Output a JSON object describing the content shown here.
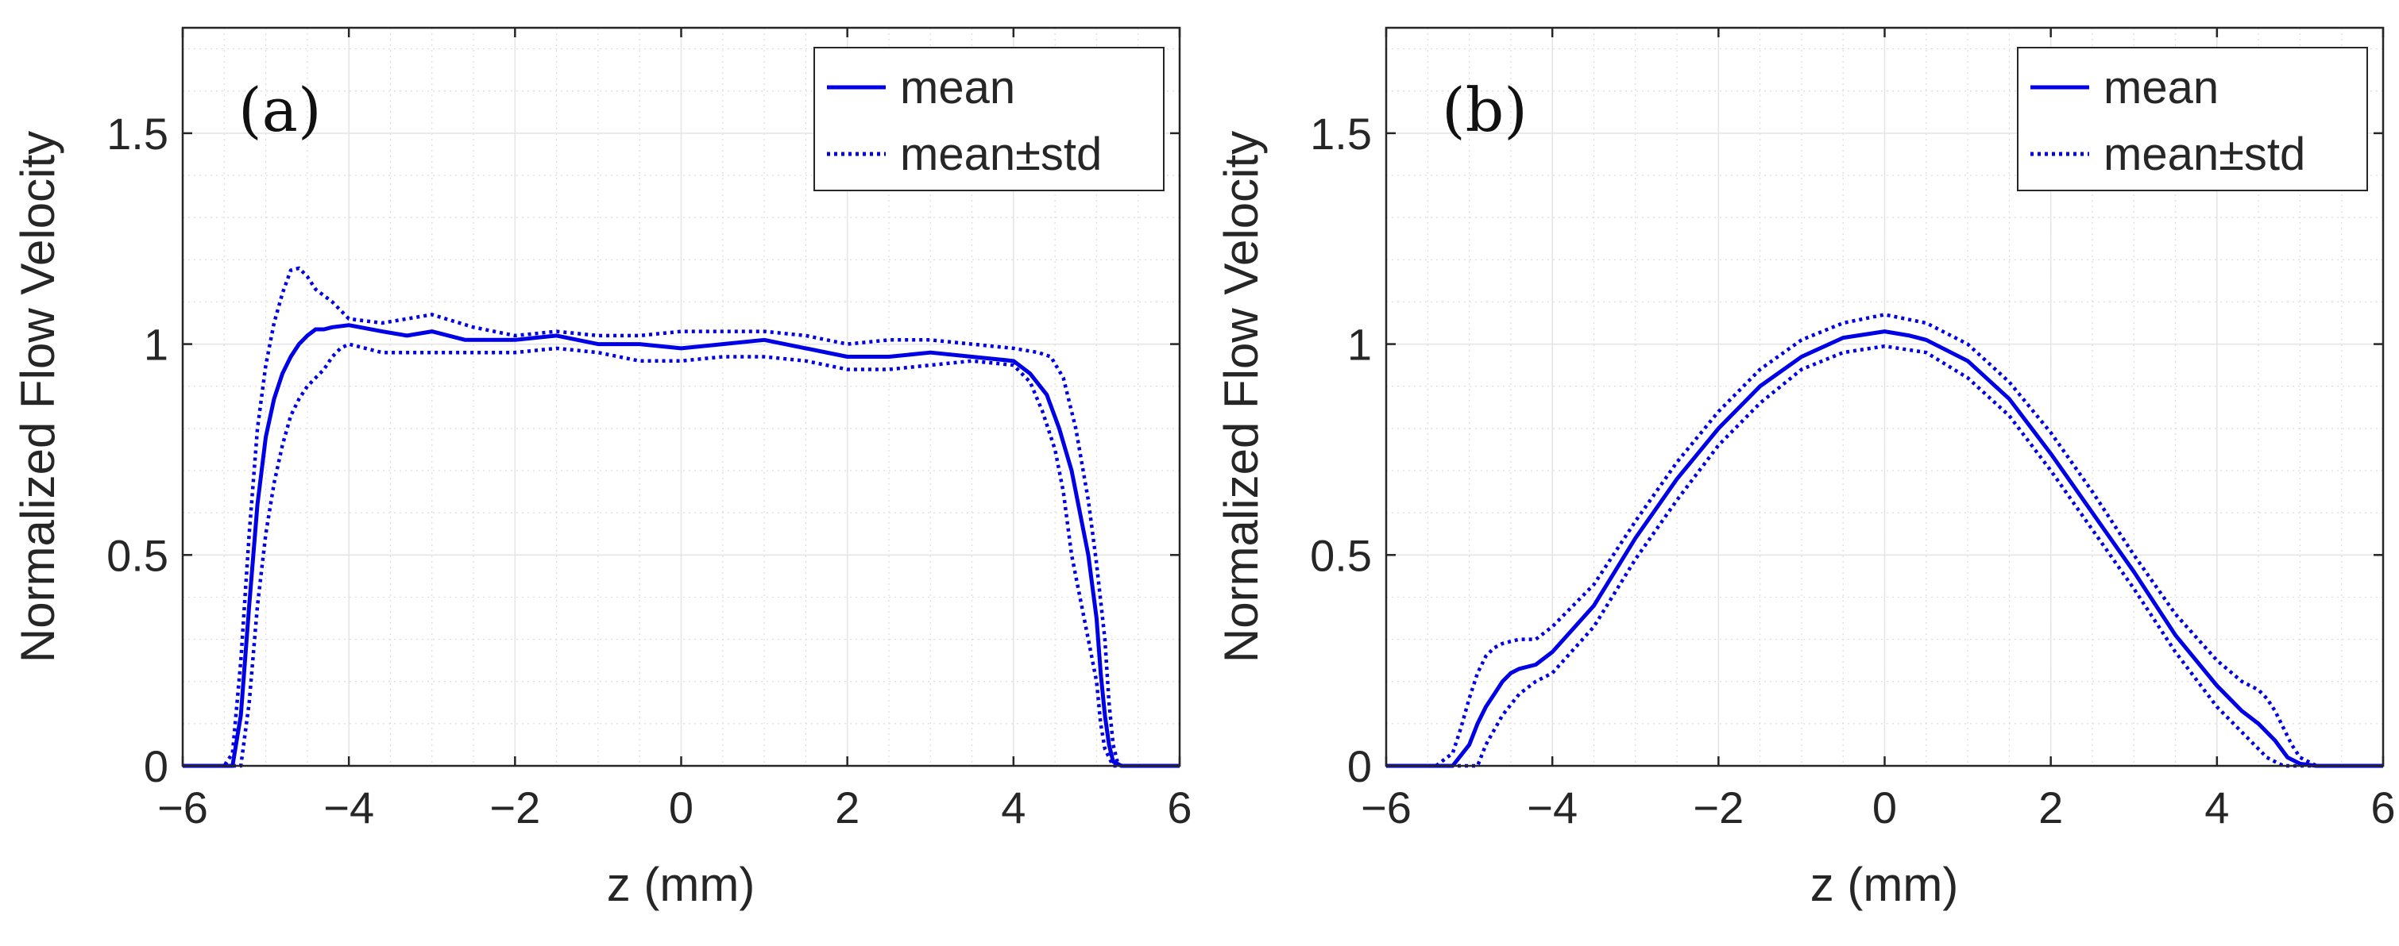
{
  "chart_data": [
    {
      "type": "line",
      "panel_label": "(a)",
      "xlabel": "z (mm)",
      "ylabel": "Normalized Flow Velocity",
      "xlim": [
        -6,
        6
      ],
      "ylim": [
        0,
        1.75
      ],
      "xticks": [
        -6,
        -4,
        -2,
        0,
        2,
        4,
        6
      ],
      "xtick_labels": [
        "−6",
        "−4",
        "−2",
        "0",
        "2",
        "4",
        "6"
      ],
      "yticks": [
        0,
        0.5,
        1,
        1.5
      ],
      "ytick_labels": [
        "0",
        "0.5",
        "1",
        "1.5"
      ],
      "grid": true,
      "minor_grid": true,
      "legend_position": "top-right",
      "series": [
        {
          "name": "mean",
          "style": "solid",
          "color": "#0000e6",
          "x": [
            -6,
            -5.4,
            -5.3,
            -5.2,
            -5.1,
            -5.0,
            -4.9,
            -4.8,
            -4.7,
            -4.6,
            -4.5,
            -4.4,
            -4.3,
            -4.2,
            -4.0,
            -3.6,
            -3.3,
            -3.0,
            -2.6,
            -2.0,
            -1.5,
            -1.0,
            -0.5,
            0.0,
            0.5,
            1.0,
            1.5,
            2.0,
            2.5,
            3.0,
            3.5,
            4.0,
            4.2,
            4.4,
            4.55,
            4.7,
            4.8,
            4.9,
            5.0,
            5.05,
            5.1,
            5.15,
            5.2,
            5.3,
            6
          ],
          "y": [
            0,
            0,
            0.12,
            0.38,
            0.62,
            0.78,
            0.87,
            0.93,
            0.97,
            1.0,
            1.02,
            1.035,
            1.035,
            1.04,
            1.045,
            1.03,
            1.02,
            1.03,
            1.01,
            1.01,
            1.02,
            1.0,
            1.0,
            0.99,
            1.0,
            1.01,
            0.99,
            0.97,
            0.97,
            0.98,
            0.97,
            0.96,
            0.93,
            0.88,
            0.8,
            0.7,
            0.6,
            0.5,
            0.35,
            0.22,
            0.12,
            0.05,
            0.01,
            0,
            0
          ]
        },
        {
          "name": "mean+std",
          "style": "dotted",
          "color": "#0000e6",
          "x": [
            -6,
            -5.5,
            -5.4,
            -5.3,
            -5.2,
            -5.1,
            -5.0,
            -4.9,
            -4.8,
            -4.7,
            -4.6,
            -4.5,
            -4.4,
            -4.2,
            -4.0,
            -3.6,
            -3.3,
            -3.0,
            -2.5,
            -2.0,
            -1.5,
            -1.0,
            -0.5,
            0.0,
            0.5,
            1.0,
            1.5,
            2.0,
            2.5,
            3.0,
            3.5,
            4.0,
            4.3,
            4.45,
            4.6,
            4.75,
            4.9,
            5.0,
            5.1,
            5.15,
            5.2,
            5.25,
            5.3,
            6
          ],
          "y": [
            0,
            0,
            0.03,
            0.25,
            0.55,
            0.8,
            0.95,
            1.05,
            1.12,
            1.175,
            1.18,
            1.16,
            1.13,
            1.1,
            1.06,
            1.05,
            1.06,
            1.07,
            1.04,
            1.02,
            1.03,
            1.02,
            1.02,
            1.03,
            1.03,
            1.03,
            1.02,
            1.0,
            1.01,
            1.01,
            1.0,
            0.99,
            0.98,
            0.97,
            0.92,
            0.8,
            0.63,
            0.48,
            0.3,
            0.15,
            0.05,
            0.01,
            0,
            0
          ]
        },
        {
          "name": "mean−std",
          "style": "dotted",
          "color": "#0000e6",
          "x": [
            -6,
            -5.3,
            -5.2,
            -5.1,
            -5.0,
            -4.9,
            -4.8,
            -4.7,
            -4.6,
            -4.5,
            -4.4,
            -4.3,
            -4.2,
            -4.1,
            -4.0,
            -3.6,
            -3.0,
            -2.5,
            -2.0,
            -1.5,
            -1.0,
            -0.5,
            0.0,
            0.5,
            1.0,
            1.5,
            2.0,
            2.5,
            3.0,
            3.5,
            4.0,
            4.2,
            4.35,
            4.5,
            4.6,
            4.7,
            4.8,
            4.9,
            5.0,
            5.05,
            5.1,
            5.2,
            6
          ],
          "y": [
            0,
            0,
            0.15,
            0.38,
            0.55,
            0.67,
            0.76,
            0.83,
            0.87,
            0.9,
            0.92,
            0.94,
            0.97,
            0.99,
            1.0,
            0.98,
            0.98,
            0.98,
            0.98,
            0.99,
            0.98,
            0.96,
            0.96,
            0.97,
            0.97,
            0.96,
            0.94,
            0.94,
            0.95,
            0.96,
            0.95,
            0.91,
            0.84,
            0.75,
            0.65,
            0.5,
            0.4,
            0.3,
            0.2,
            0.1,
            0.04,
            0,
            0
          ]
        }
      ],
      "legend": [
        {
          "label": "mean",
          "style": "solid"
        },
        {
          "label": "mean±std",
          "style": "dotted"
        }
      ]
    },
    {
      "type": "line",
      "panel_label": "(b)",
      "xlabel": "z (mm)",
      "ylabel": "Normalized Flow Velocity",
      "xlim": [
        -6,
        6
      ],
      "ylim": [
        0,
        1.75
      ],
      "xticks": [
        -6,
        -4,
        -2,
        0,
        2,
        4,
        6
      ],
      "xtick_labels": [
        "−6",
        "−4",
        "−2",
        "0",
        "2",
        "4",
        "6"
      ],
      "yticks": [
        0,
        0.5,
        1,
        1.5
      ],
      "ytick_labels": [
        "0",
        "0.5",
        "1",
        "1.5"
      ],
      "grid": true,
      "minor_grid": true,
      "legend_position": "top-right",
      "series": [
        {
          "name": "mean",
          "style": "solid",
          "color": "#0000e6",
          "x": [
            -6,
            -5.2,
            -5.0,
            -4.9,
            -4.8,
            -4.7,
            -4.6,
            -4.5,
            -4.4,
            -4.2,
            -4.0,
            -3.5,
            -3.0,
            -2.5,
            -2.0,
            -1.5,
            -1.0,
            -0.5,
            0.0,
            0.3,
            0.5,
            1.0,
            1.5,
            2.0,
            2.5,
            3.0,
            3.5,
            4.0,
            4.3,
            4.5,
            4.7,
            4.85,
            5.0,
            5.2,
            6
          ],
          "y": [
            0,
            0,
            0.05,
            0.1,
            0.14,
            0.17,
            0.2,
            0.22,
            0.23,
            0.24,
            0.27,
            0.38,
            0.54,
            0.68,
            0.8,
            0.9,
            0.97,
            1.015,
            1.03,
            1.02,
            1.01,
            0.96,
            0.87,
            0.74,
            0.6,
            0.46,
            0.31,
            0.19,
            0.13,
            0.1,
            0.06,
            0.02,
            0.005,
            0,
            0
          ]
        },
        {
          "name": "mean+std",
          "style": "dotted",
          "color": "#0000e6",
          "x": [
            -6,
            -5.4,
            -5.2,
            -5.1,
            -5.0,
            -4.9,
            -4.8,
            -4.7,
            -4.6,
            -4.4,
            -4.2,
            -4.0,
            -3.5,
            -3.0,
            -2.5,
            -2.0,
            -1.5,
            -1.0,
            -0.5,
            0.0,
            0.5,
            1.0,
            1.5,
            2.0,
            2.5,
            3.0,
            3.5,
            4.0,
            4.3,
            4.5,
            4.6,
            4.7,
            4.8,
            4.9,
            5.0,
            5.2,
            6
          ],
          "y": [
            0,
            0,
            0.03,
            0.09,
            0.16,
            0.22,
            0.26,
            0.28,
            0.29,
            0.3,
            0.3,
            0.33,
            0.43,
            0.58,
            0.72,
            0.84,
            0.94,
            1.01,
            1.05,
            1.07,
            1.05,
            1.0,
            0.91,
            0.79,
            0.65,
            0.5,
            0.36,
            0.25,
            0.2,
            0.18,
            0.16,
            0.13,
            0.09,
            0.05,
            0.02,
            0,
            0
          ]
        },
        {
          "name": "mean−std",
          "style": "dotted",
          "color": "#0000e6",
          "x": [
            -6,
            -4.9,
            -4.8,
            -4.6,
            -4.4,
            -4.2,
            -4.0,
            -3.5,
            -3.0,
            -2.5,
            -2.0,
            -1.5,
            -1.0,
            -0.5,
            0.0,
            0.5,
            1.0,
            1.5,
            2.0,
            2.5,
            3.0,
            3.5,
            4.0,
            4.3,
            4.5,
            4.6,
            4.7,
            4.8,
            6
          ],
          "y": [
            0,
            0,
            0.05,
            0.12,
            0.17,
            0.2,
            0.22,
            0.33,
            0.49,
            0.63,
            0.76,
            0.86,
            0.94,
            0.98,
            0.995,
            0.98,
            0.92,
            0.83,
            0.7,
            0.56,
            0.42,
            0.27,
            0.14,
            0.08,
            0.04,
            0.02,
            0.01,
            0,
            0
          ]
        }
      ],
      "legend": [
        {
          "label": "mean",
          "style": "solid"
        },
        {
          "label": "mean±std",
          "style": "dotted"
        }
      ]
    }
  ]
}
